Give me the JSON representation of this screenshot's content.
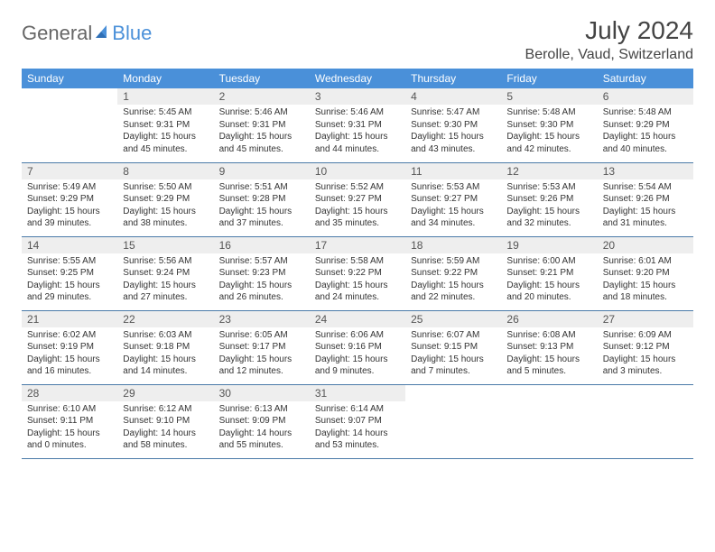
{
  "brand": {
    "part1": "General",
    "part2": "Blue"
  },
  "title": "July 2024",
  "location": "Berolle, Vaud, Switzerland",
  "colors": {
    "header_bg": "#4a90d9",
    "header_text": "#ffffff",
    "daynum_bg": "#eeeeee",
    "rule": "#4a7aa8",
    "brand_accent": "#4a90d9"
  },
  "weekdays": [
    "Sunday",
    "Monday",
    "Tuesday",
    "Wednesday",
    "Thursday",
    "Friday",
    "Saturday"
  ],
  "weeks": [
    [
      null,
      {
        "n": "1",
        "sr": "5:45 AM",
        "ss": "9:31 PM",
        "dl": "15 hours and 45 minutes."
      },
      {
        "n": "2",
        "sr": "5:46 AM",
        "ss": "9:31 PM",
        "dl": "15 hours and 45 minutes."
      },
      {
        "n": "3",
        "sr": "5:46 AM",
        "ss": "9:31 PM",
        "dl": "15 hours and 44 minutes."
      },
      {
        "n": "4",
        "sr": "5:47 AM",
        "ss": "9:30 PM",
        "dl": "15 hours and 43 minutes."
      },
      {
        "n": "5",
        "sr": "5:48 AM",
        "ss": "9:30 PM",
        "dl": "15 hours and 42 minutes."
      },
      {
        "n": "6",
        "sr": "5:48 AM",
        "ss": "9:29 PM",
        "dl": "15 hours and 40 minutes."
      }
    ],
    [
      {
        "n": "7",
        "sr": "5:49 AM",
        "ss": "9:29 PM",
        "dl": "15 hours and 39 minutes."
      },
      {
        "n": "8",
        "sr": "5:50 AM",
        "ss": "9:29 PM",
        "dl": "15 hours and 38 minutes."
      },
      {
        "n": "9",
        "sr": "5:51 AM",
        "ss": "9:28 PM",
        "dl": "15 hours and 37 minutes."
      },
      {
        "n": "10",
        "sr": "5:52 AM",
        "ss": "9:27 PM",
        "dl": "15 hours and 35 minutes."
      },
      {
        "n": "11",
        "sr": "5:53 AM",
        "ss": "9:27 PM",
        "dl": "15 hours and 34 minutes."
      },
      {
        "n": "12",
        "sr": "5:53 AM",
        "ss": "9:26 PM",
        "dl": "15 hours and 32 minutes."
      },
      {
        "n": "13",
        "sr": "5:54 AM",
        "ss": "9:26 PM",
        "dl": "15 hours and 31 minutes."
      }
    ],
    [
      {
        "n": "14",
        "sr": "5:55 AM",
        "ss": "9:25 PM",
        "dl": "15 hours and 29 minutes."
      },
      {
        "n": "15",
        "sr": "5:56 AM",
        "ss": "9:24 PM",
        "dl": "15 hours and 27 minutes."
      },
      {
        "n": "16",
        "sr": "5:57 AM",
        "ss": "9:23 PM",
        "dl": "15 hours and 26 minutes."
      },
      {
        "n": "17",
        "sr": "5:58 AM",
        "ss": "9:22 PM",
        "dl": "15 hours and 24 minutes."
      },
      {
        "n": "18",
        "sr": "5:59 AM",
        "ss": "9:22 PM",
        "dl": "15 hours and 22 minutes."
      },
      {
        "n": "19",
        "sr": "6:00 AM",
        "ss": "9:21 PM",
        "dl": "15 hours and 20 minutes."
      },
      {
        "n": "20",
        "sr": "6:01 AM",
        "ss": "9:20 PM",
        "dl": "15 hours and 18 minutes."
      }
    ],
    [
      {
        "n": "21",
        "sr": "6:02 AM",
        "ss": "9:19 PM",
        "dl": "15 hours and 16 minutes."
      },
      {
        "n": "22",
        "sr": "6:03 AM",
        "ss": "9:18 PM",
        "dl": "15 hours and 14 minutes."
      },
      {
        "n": "23",
        "sr": "6:05 AM",
        "ss": "9:17 PM",
        "dl": "15 hours and 12 minutes."
      },
      {
        "n": "24",
        "sr": "6:06 AM",
        "ss": "9:16 PM",
        "dl": "15 hours and 9 minutes."
      },
      {
        "n": "25",
        "sr": "6:07 AM",
        "ss": "9:15 PM",
        "dl": "15 hours and 7 minutes."
      },
      {
        "n": "26",
        "sr": "6:08 AM",
        "ss": "9:13 PM",
        "dl": "15 hours and 5 minutes."
      },
      {
        "n": "27",
        "sr": "6:09 AM",
        "ss": "9:12 PM",
        "dl": "15 hours and 3 minutes."
      }
    ],
    [
      {
        "n": "28",
        "sr": "6:10 AM",
        "ss": "9:11 PM",
        "dl": "15 hours and 0 minutes."
      },
      {
        "n": "29",
        "sr": "6:12 AM",
        "ss": "9:10 PM",
        "dl": "14 hours and 58 minutes."
      },
      {
        "n": "30",
        "sr": "6:13 AM",
        "ss": "9:09 PM",
        "dl": "14 hours and 55 minutes."
      },
      {
        "n": "31",
        "sr": "6:14 AM",
        "ss": "9:07 PM",
        "dl": "14 hours and 53 minutes."
      },
      null,
      null,
      null
    ]
  ],
  "labels": {
    "sunrise": "Sunrise: ",
    "sunset": "Sunset: ",
    "daylight": "Daylight: "
  }
}
